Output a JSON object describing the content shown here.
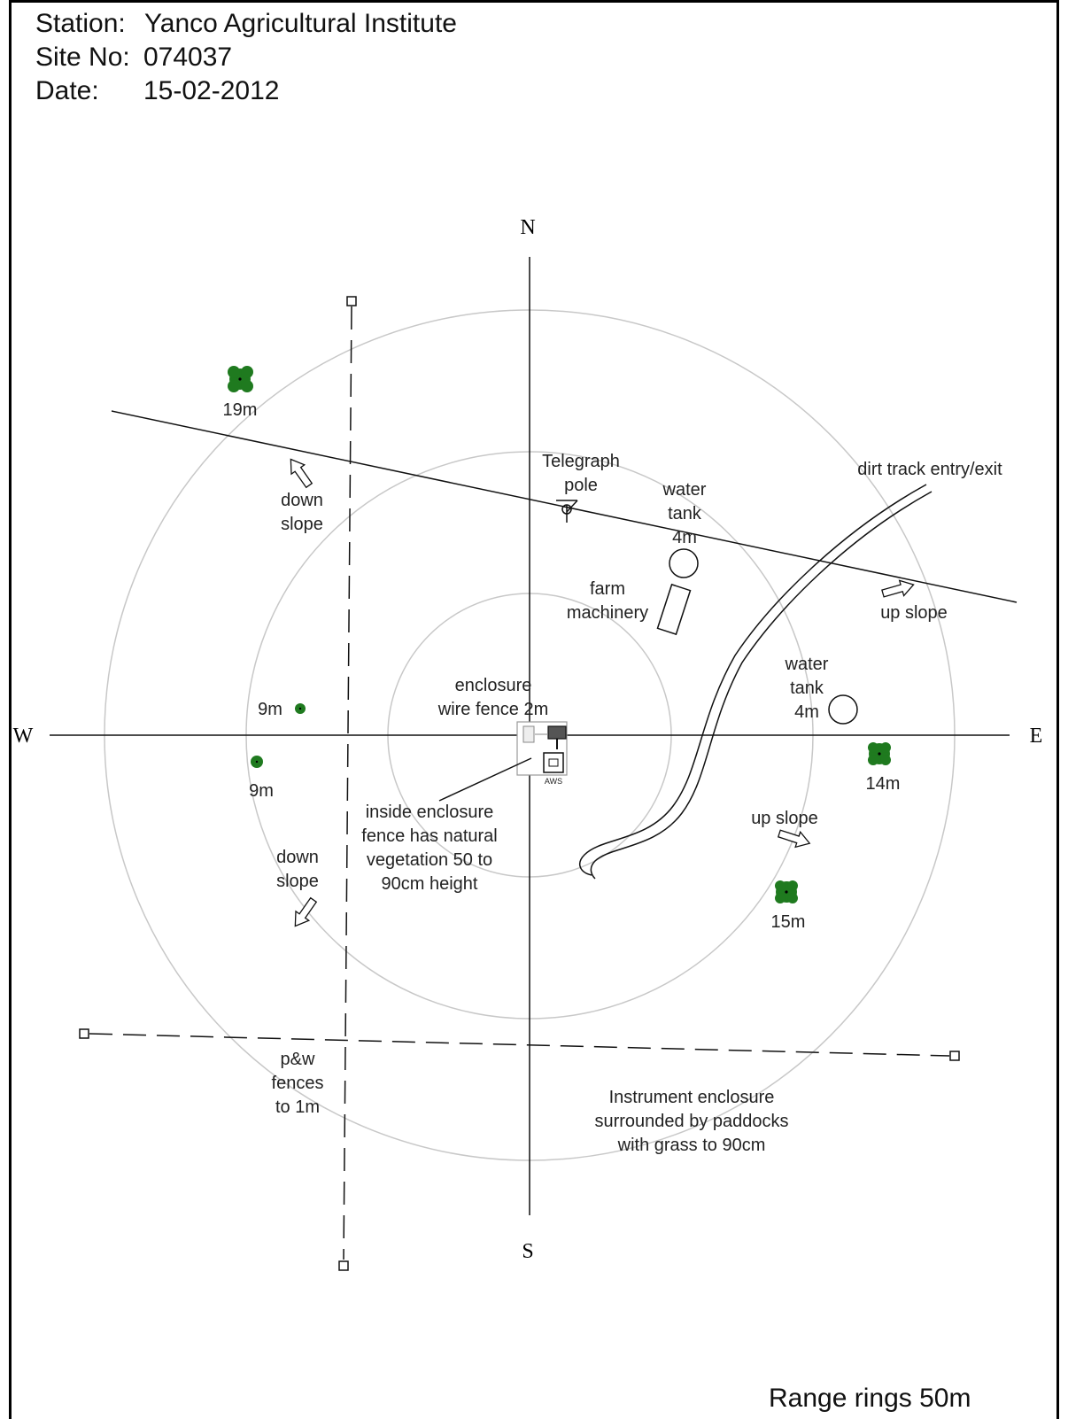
{
  "header": {
    "station_key": "Station:",
    "station_value": "Yanco Agricultural Institute",
    "site_key": "Site No:",
    "site_value": "074037",
    "date_key": "Date:",
    "date_value": "15-02-2012"
  },
  "compass": {
    "north": "N",
    "south": "S",
    "east": "E",
    "west": "W"
  },
  "labels": {
    "tree_19m": "19m",
    "down_slope_nw_1": "down",
    "down_slope_nw_2": "slope",
    "telegraph_1": "Telegraph",
    "telegraph_2": "pole",
    "water_tank_n_1": "water",
    "water_tank_n_2": "tank",
    "water_tank_n_3": "4m",
    "farm_machinery_1": "farm",
    "farm_machinery_2": "machinery",
    "dirt_track": "dirt track entry/exit",
    "up_slope_ne": "up slope",
    "water_tank_e_1": "water",
    "water_tank_e_2": "tank",
    "water_tank_e_3": "4m",
    "tree_9m_a": "9m",
    "tree_9m_b": "9m",
    "enclosure_1": "enclosure",
    "enclosure_2": "wire fence 2m",
    "aws": "AWS",
    "tree_14m": "14m",
    "up_slope_se": "up slope",
    "tree_15m": "15m",
    "inside_1": "inside enclosure",
    "inside_2": "fence has natural",
    "inside_3": "vegetation 50 to",
    "inside_4": "90cm height",
    "down_slope_sw_1": "down",
    "down_slope_sw_2": "slope",
    "fences_1": "p&w",
    "fences_2": "fences",
    "fences_3": "to 1m",
    "paddocks_1": "Instrument enclosure",
    "paddocks_2": "surrounded by paddocks",
    "paddocks_3": "with grass to 90cm"
  },
  "range_note": "Range rings 50m",
  "colors": {
    "tree": "#1f7a1f",
    "ring": "#c8c8c8",
    "ink": "#111111"
  }
}
